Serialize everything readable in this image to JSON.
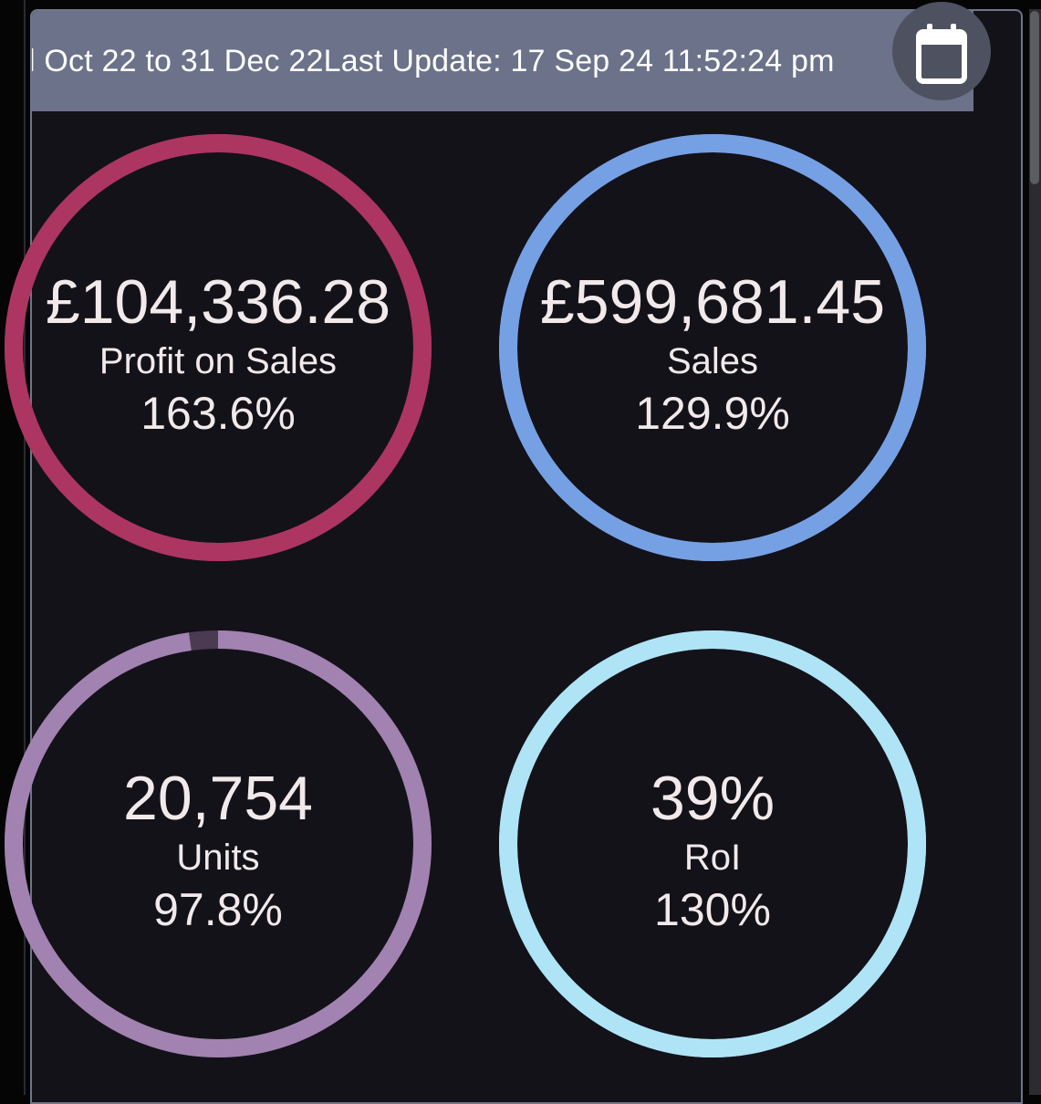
{
  "header": {
    "date_range": "l Oct 22 to 31 Dec 22",
    "last_update": "Last Update: 17 Sep 24 11:52:24 pm"
  },
  "colors": {
    "background": "#131219",
    "header": "#6b7289",
    "text": "#f1e9ea"
  },
  "kpis": [
    {
      "value": "£104,336.28",
      "label": "Profit on Sales",
      "percent": "163.6%",
      "ring_color": "#ad3561",
      "ring_fill": 1.0
    },
    {
      "value": "£599,681.45",
      "label": "Sales",
      "percent": "129.9%",
      "ring_color": "#76a0e4",
      "ring_fill": 1.0
    },
    {
      "value": "20,754",
      "label": "Units",
      "percent": "97.8%",
      "ring_color": "#a282b0",
      "ring_fill": 0.978
    },
    {
      "value": "39%",
      "label": "RoI",
      "percent": "130%",
      "ring_color": "#aee4f6",
      "ring_fill": 1.0
    }
  ],
  "icons": {
    "calendar": "calendar-icon"
  }
}
